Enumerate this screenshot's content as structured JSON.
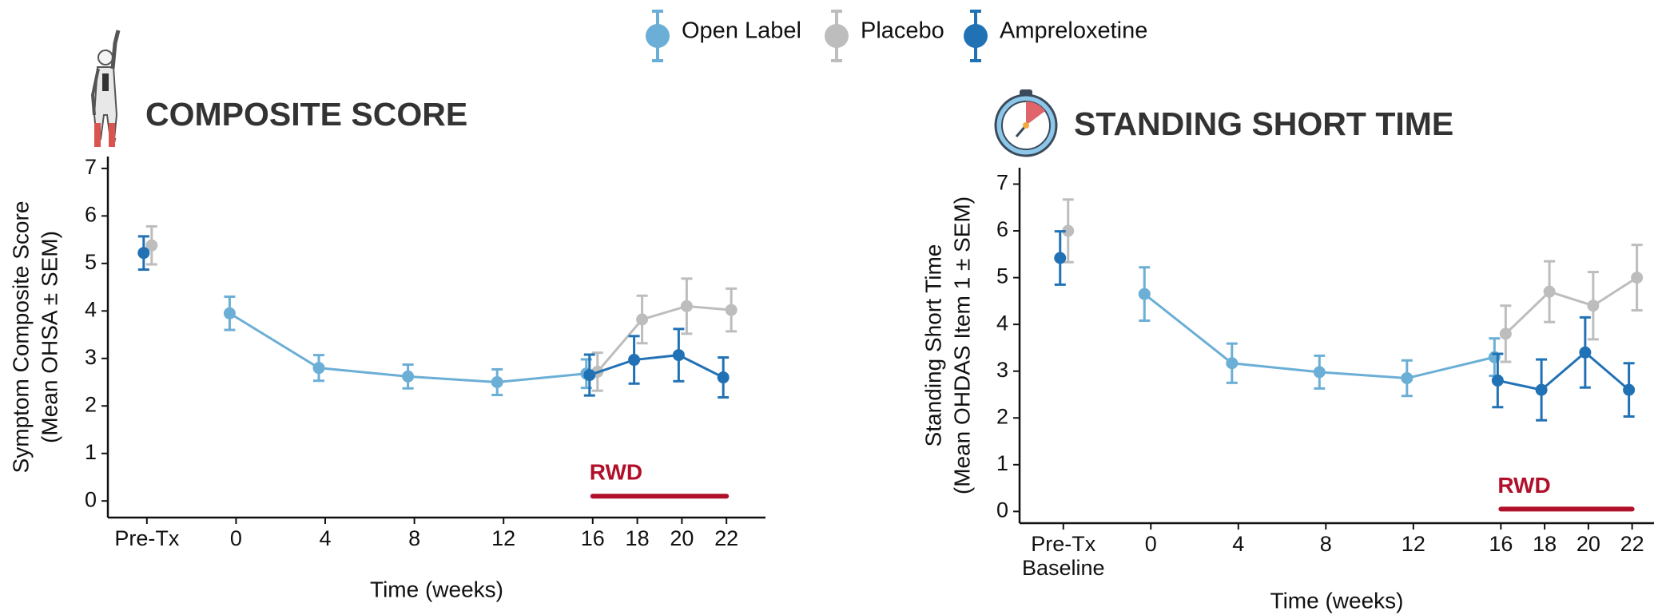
{
  "chart_data": [
    {
      "type": "line",
      "title": "COMPOSITE SCORE",
      "ylabel": [
        "Symptom Composite Score",
        "(Mean OHSA ± SEM)"
      ],
      "xlabel": "Time (weeks)",
      "xlim": [
        -5.75,
        23.75
      ],
      "ylim": [
        -0.35,
        7.25
      ],
      "xticks": [
        {
          "value": -4,
          "label": [
            "Pre-Tx"
          ]
        },
        0,
        4,
        8,
        12,
        16,
        18,
        20,
        22
      ],
      "yticks": [
        0,
        1,
        2,
        3,
        4,
        5,
        6,
        7
      ],
      "series": [
        {
          "name": "Open Label",
          "color": "#6baed6",
          "x": [
            0,
            4,
            8,
            12,
            16
          ],
          "values": [
            3.95,
            2.8,
            2.62,
            2.5,
            2.68
          ],
          "errors": [
            0.35,
            0.27,
            0.25,
            0.27,
            0.3
          ]
        },
        {
          "name": "Placebo",
          "color": "#bdbdbd",
          "x": [
            -4,
            null,
            16,
            18,
            20,
            22
          ],
          "values": [
            5.38,
            null,
            2.72,
            3.82,
            4.1,
            4.02
          ],
          "errors": [
            0.4,
            null,
            0.4,
            0.5,
            0.58,
            0.45
          ]
        },
        {
          "name": "Ampreloxetine",
          "color": "#2171b5",
          "x": [
            -4,
            null,
            16,
            18,
            20,
            22
          ],
          "values": [
            5.22,
            null,
            2.65,
            2.97,
            3.07,
            2.6
          ],
          "errors": [
            0.35,
            null,
            0.43,
            0.5,
            0.55,
            0.42
          ]
        }
      ],
      "annotations": [
        {
          "text": "RWD",
          "x": [
            16,
            22
          ],
          "y": 0.1,
          "color": "#b0102a"
        }
      ]
    },
    {
      "type": "line",
      "title": "STANDING SHORT TIME",
      "ylabel": [
        "Standing Short Time",
        "(Mean OHDAS Item 1 ± SEM)"
      ],
      "xlabel": "Time (weeks)",
      "xlim": [
        -6,
        23
      ],
      "ylim": [
        -0.25,
        7.35
      ],
      "xticks": [
        {
          "value": -4,
          "label": [
            "Pre-Tx",
            "Baseline"
          ]
        },
        0,
        4,
        8,
        12,
        16,
        18,
        20,
        22
      ],
      "yticks": [
        0,
        1,
        2,
        3,
        4,
        5,
        6,
        7
      ],
      "series": [
        {
          "name": "Open Label",
          "color": "#6baed6",
          "x": [
            0,
            4,
            8,
            12,
            16
          ],
          "values": [
            4.65,
            3.17,
            2.98,
            2.85,
            3.3
          ],
          "errors": [
            0.57,
            0.42,
            0.35,
            0.38,
            0.4
          ]
        },
        {
          "name": "Placebo",
          "color": "#bdbdbd",
          "x": [
            -4,
            null,
            16,
            18,
            20,
            22
          ],
          "values": [
            6.0,
            null,
            3.8,
            4.7,
            4.4,
            5.0
          ],
          "errors": [
            0.67,
            null,
            0.6,
            0.65,
            0.72,
            0.7
          ]
        },
        {
          "name": "Ampreloxetine",
          "color": "#2171b5",
          "x": [
            -4,
            null,
            16,
            18,
            20,
            22
          ],
          "values": [
            5.42,
            null,
            2.8,
            2.6,
            3.4,
            2.6
          ],
          "errors": [
            0.57,
            null,
            0.57,
            0.65,
            0.75,
            0.57
          ]
        }
      ],
      "annotations": [
        {
          "text": "RWD",
          "x": [
            16,
            22
          ],
          "y": 0.05,
          "color": "#b0102a"
        }
      ]
    }
  ]
}
